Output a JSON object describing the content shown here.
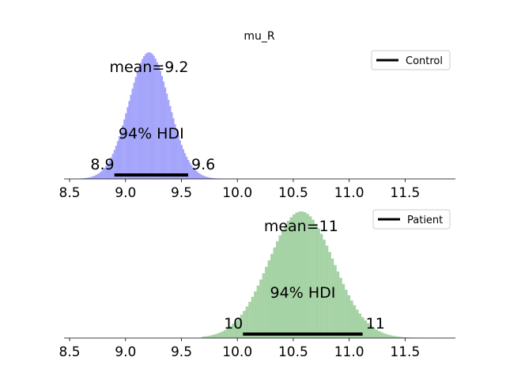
{
  "chart_data": [
    {
      "type": "area",
      "title": "mu_R",
      "legend": {
        "label": "Control",
        "position": "top-right"
      },
      "color": "#a4a4fb",
      "mean_label": "mean=9.2",
      "hdi_label": "94% HDI",
      "hdi": [
        8.9,
        9.56
      ],
      "hdi_low_label": "8.9",
      "hdi_high_label": "9.6",
      "xlim": [
        8.45,
        11.95
      ],
      "xticks": [
        8.5,
        9.0,
        9.5,
        10.0,
        10.5,
        11.0,
        11.5
      ],
      "xtick_labels": [
        "8.5",
        "9.0",
        "9.5",
        "10.0",
        "10.5",
        "11.0",
        "11.5"
      ],
      "distribution": {
        "center": 9.21,
        "sd": 0.18,
        "min": 8.6,
        "max": 9.92,
        "bins": 90
      }
    },
    {
      "type": "area",
      "title": "",
      "legend": {
        "label": "Patient",
        "position": "top-right"
      },
      "color": "#a6d3a5",
      "mean_label": "mean=11",
      "hdi_label": "94% HDI",
      "hdi": [
        10.05,
        11.12
      ],
      "hdi_low_label": "10",
      "hdi_high_label": "11",
      "xlim": [
        8.45,
        11.95
      ],
      "xticks": [
        8.5,
        9.0,
        9.5,
        10.0,
        10.5,
        11.0,
        11.5
      ],
      "xtick_labels": [
        "8.5",
        "9.0",
        "9.5",
        "10.0",
        "10.5",
        "11.0",
        "11.5"
      ],
      "distribution": {
        "center": 10.57,
        "sd": 0.29,
        "min": 9.68,
        "max": 11.65,
        "bins": 80
      }
    }
  ]
}
